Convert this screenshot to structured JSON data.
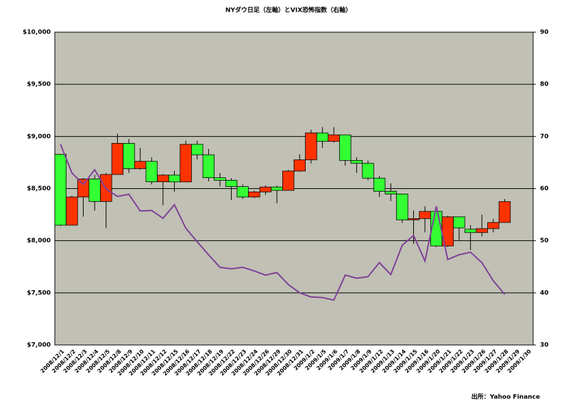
{
  "chart_data": {
    "type": "candlestick",
    "title": "NYダウ日足（左軸）とVIX恐怖指数（右軸）",
    "source": "出所：Yahoo Finance",
    "categories": [
      "2008/12/1",
      "2008/12/2",
      "2008/12/3",
      "2008/12/4",
      "2008/12/5",
      "2008/12/8",
      "2008/12/9",
      "2008/12/10",
      "2008/12/11",
      "2008/12/12",
      "2008/12/15",
      "2008/12/16",
      "2008/12/17",
      "2008/12/18",
      "2008/12/19",
      "2008/12/22",
      "2008/12/23",
      "2008/12/24",
      "2008/12/26",
      "2008/12/29",
      "2008/12/30",
      "2008/12/31",
      "2009/1/2",
      "2009/1/5",
      "2009/1/6",
      "2009/1/7",
      "2009/1/8",
      "2009/1/9",
      "2009/1/12",
      "2009/1/13",
      "2009/1/14",
      "2009/1/15",
      "2009/1/16",
      "2009/1/20",
      "2009/1/21",
      "2009/1/22",
      "2009/1/23",
      "2009/1/26",
      "2009/1/27",
      "2009/1/28",
      "2009/1/29",
      "2009/1/30"
    ],
    "open": [
      8829,
      8149,
      8419,
      8592,
      8376,
      8635,
      8934,
      8691,
      8761,
      8565,
      8629,
      8564,
      8924,
      8824,
      8604,
      8579,
      8519,
      8419,
      8468,
      8515,
      8483,
      8668,
      8776,
      9034,
      8953,
      9015,
      8770,
      8742,
      8600,
      8474,
      8448,
      8200,
      8212,
      8281,
      7950,
      8229,
      8110,
      8078,
      8116,
      8175,
      null,
      null
    ],
    "high": [
      8829,
      8432,
      8602,
      8630,
      8650,
      9026,
      8975,
      8890,
      8800,
      8640,
      8670,
      8960,
      8960,
      8880,
      8650,
      8600,
      8540,
      8480,
      8530,
      8530,
      8680,
      8830,
      9065,
      9090,
      9090,
      9015,
      8800,
      8770,
      8620,
      8550,
      8450,
      8290,
      8330,
      8281,
      8240,
      8229,
      8150,
      8250,
      8210,
      8400,
      null,
      null
    ],
    "low": [
      8141,
      8149,
      8230,
      8290,
      8120,
      8635,
      8650,
      8680,
      8540,
      8340,
      8470,
      8564,
      8780,
      8570,
      8520,
      8390,
      8400,
      8410,
      8440,
      8360,
      8480,
      8660,
      8740,
      8890,
      8940,
      8720,
      8650,
      8580,
      8420,
      8380,
      8170,
      7970,
      8080,
      7940,
      7940,
      8000,
      7910,
      8040,
      8080,
      8175,
      null,
      null
    ],
    "close": [
      8149,
      8419,
      8592,
      8376,
      8635,
      8934,
      8691,
      8761,
      8565,
      8629,
      8564,
      8924,
      8824,
      8604,
      8579,
      8519,
      8419,
      8468,
      8515,
      8483,
      8668,
      8776,
      9034,
      8953,
      9015,
      8770,
      8742,
      8600,
      8474,
      8448,
      8200,
      8212,
      8281,
      7950,
      8229,
      8123,
      8078,
      8116,
      8175,
      8375,
      null,
      null
    ],
    "up_color": "#ff3300",
    "down_color": "#33ff33",
    "vix": {
      "color": "#7f3f98",
      "axis": "y2",
      "values": [
        68.5,
        63,
        60.8,
        63.6,
        59.9,
        58.5,
        58.9,
        55.7,
        55.8,
        54.3,
        56.9,
        52.4,
        49.8,
        47.3,
        44.9,
        44.6,
        44.9,
        44.2,
        43.4,
        43.9,
        41.6,
        40,
        39.2,
        39.1,
        38.6,
        43.4,
        42.8,
        43.1,
        45.8,
        43.5,
        49.1,
        51,
        46.1,
        56.6,
        46.4,
        47.3,
        47.8,
        45.8,
        42.3,
        39.7,
        null,
        null
      ]
    },
    "ylim": [
      7000,
      10000
    ],
    "yticks": [
      {
        "value": 7000,
        "label": "$7,000"
      },
      {
        "value": 7500,
        "label": "$7,500"
      },
      {
        "value": 8000,
        "label": "$8,000"
      },
      {
        "value": 8500,
        "label": "$8,500"
      },
      {
        "value": 9000,
        "label": "$9,000"
      },
      {
        "value": 9500,
        "label": "$9,500"
      },
      {
        "value": 10000,
        "label": "$10,000"
      }
    ],
    "y2lim": [
      30,
      90
    ],
    "y2ticks": [
      30,
      40,
      50,
      60,
      70,
      80,
      90
    ],
    "grid": true,
    "plot_background": "#c0c0b4"
  }
}
